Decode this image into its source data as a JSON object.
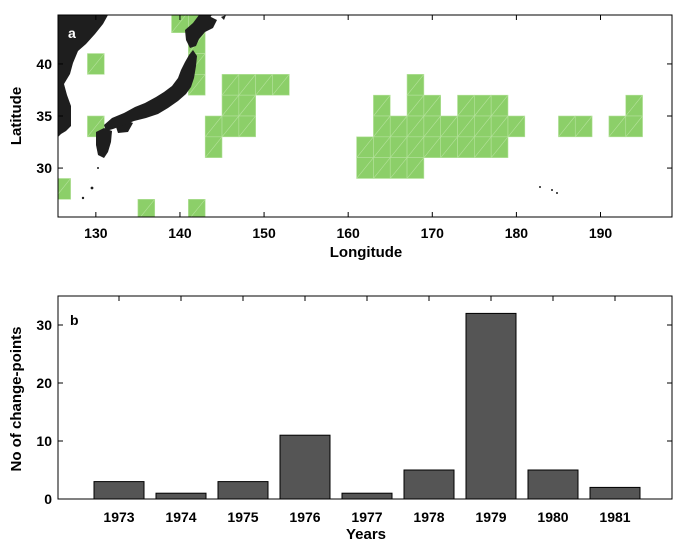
{
  "chart_data": [
    {
      "type": "heatmap",
      "panel_label": "a",
      "title": "",
      "xlabel": "Longitude",
      "ylabel": "Latitude",
      "xlim": [
        125.5,
        198.5
      ],
      "ylim": [
        25.3,
        44.7
      ],
      "xticks": [
        130,
        140,
        150,
        160,
        170,
        180,
        190
      ],
      "yticks": [
        30,
        35,
        40
      ],
      "cell_size_deg": 2,
      "cell_color": "#8ccf69",
      "cell_line_color": "#b5e29c",
      "land_color": "#1e1e1e",
      "grid": false,
      "cells_lon_lat": [
        [
          142,
          44
        ],
        [
          140,
          44
        ],
        [
          142,
          42
        ],
        [
          142,
          40
        ],
        [
          142,
          38
        ],
        [
          130,
          40
        ],
        [
          130,
          34
        ],
        [
          146,
          38
        ],
        [
          148,
          38
        ],
        [
          150,
          38
        ],
        [
          152,
          38
        ],
        [
          146,
          36
        ],
        [
          148,
          36
        ],
        [
          144,
          34
        ],
        [
          146,
          34
        ],
        [
          148,
          34
        ],
        [
          144,
          32
        ],
        [
          126,
          28
        ],
        [
          136,
          26
        ],
        [
          142,
          26
        ],
        [
          164,
          36
        ],
        [
          168,
          38
        ],
        [
          168,
          36
        ],
        [
          170,
          36
        ],
        [
          174,
          36
        ],
        [
          176,
          36
        ],
        [
          178,
          36
        ],
        [
          194,
          36
        ],
        [
          164,
          34
        ],
        [
          166,
          34
        ],
        [
          168,
          34
        ],
        [
          170,
          34
        ],
        [
          172,
          34
        ],
        [
          174,
          34
        ],
        [
          176,
          34
        ],
        [
          178,
          34
        ],
        [
          180,
          34
        ],
        [
          186,
          34
        ],
        [
          188,
          34
        ],
        [
          192,
          34
        ],
        [
          194,
          34
        ],
        [
          162,
          32
        ],
        [
          164,
          32
        ],
        [
          166,
          32
        ],
        [
          168,
          32
        ],
        [
          170,
          32
        ],
        [
          172,
          32
        ],
        [
          174,
          32
        ],
        [
          176,
          32
        ],
        [
          178,
          32
        ],
        [
          162,
          30
        ],
        [
          164,
          30
        ],
        [
          166,
          30
        ],
        [
          168,
          30
        ]
      ]
    },
    {
      "type": "bar",
      "panel_label": "b",
      "title": "",
      "xlabel": "Years",
      "ylabel": "No of change-points",
      "categories": [
        "1973",
        "1974",
        "1975",
        "1976",
        "1977",
        "1978",
        "1979",
        "1980",
        "1981"
      ],
      "values": [
        3,
        1,
        3,
        11,
        1,
        5,
        32,
        5,
        2
      ],
      "ylim": [
        0,
        35
      ],
      "yticks": [
        0,
        10,
        20,
        30
      ],
      "bar_color": "#555555",
      "grid": false
    }
  ]
}
